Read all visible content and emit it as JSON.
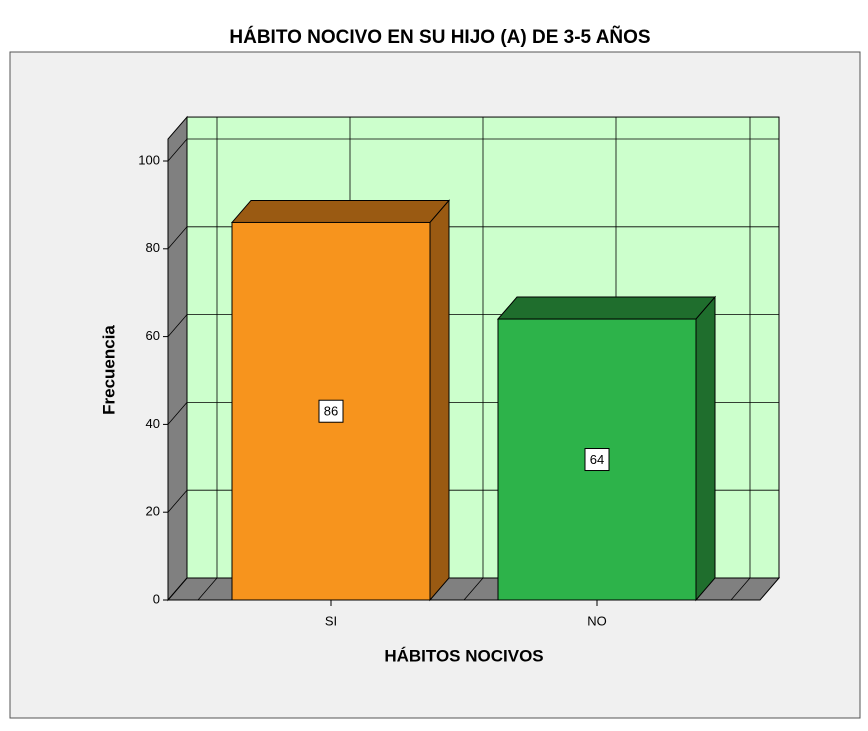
{
  "chart_data": {
    "type": "bar3d",
    "title": "HÁBITO NOCIVO EN SU HIJO (A) DE 3-5 AÑOS",
    "x_label": "HÁBITOS NOCIVOS",
    "y_label": "Frecuencia",
    "categories": [
      "SI",
      "NO"
    ],
    "values": [
      86,
      64
    ],
    "colors": [
      "#f7941d",
      "#2db34a"
    ],
    "side_colors": [
      "#9a5a12",
      "#1f6e2d"
    ],
    "ylim": [
      0,
      105
    ],
    "yticks": [
      0,
      20,
      40,
      60,
      80,
      100
    ],
    "grid": true
  }
}
